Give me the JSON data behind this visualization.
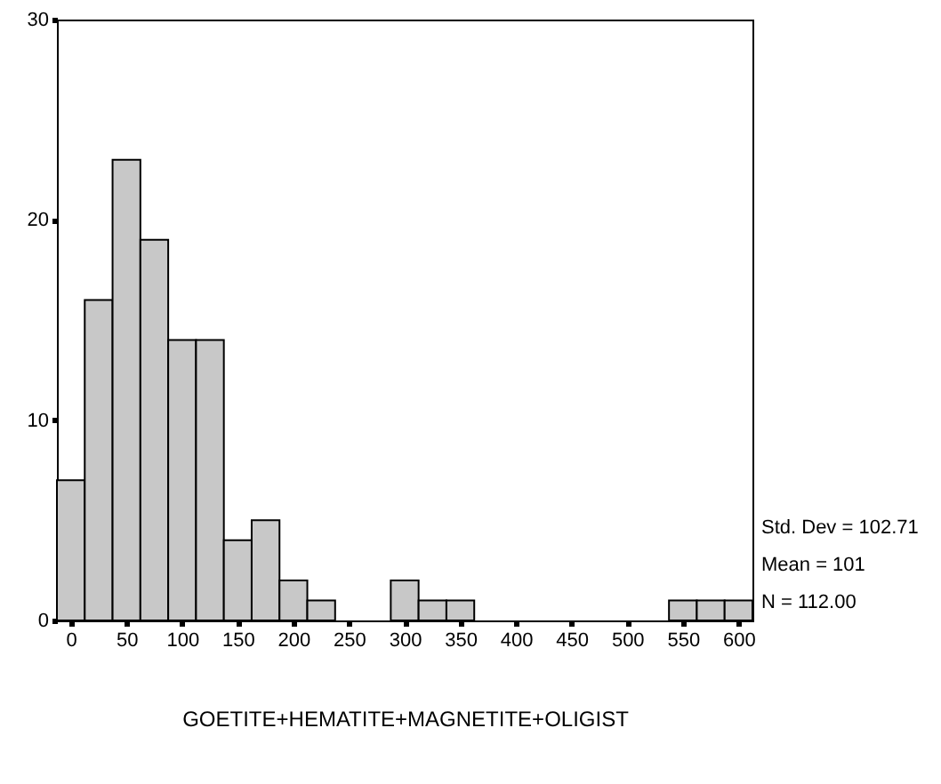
{
  "chart_data": {
    "type": "histogram",
    "xlabel": "GOETITE+HEMATITE+MAGNETITE+OLIGIST",
    "bins": [
      -12.5,
      12.5,
      37.5,
      62.5,
      87.5,
      112.5,
      137.5,
      162.5,
      187.5,
      212.5,
      237.5,
      262.5,
      287.5,
      312.5,
      337.5,
      362.5,
      387.5,
      412.5,
      437.5,
      462.5,
      487.5,
      512.5,
      537.5,
      562.5,
      587.5,
      612.5
    ],
    "values": [
      7,
      16,
      23,
      19,
      14,
      14,
      4,
      5,
      2,
      1,
      0,
      0,
      2,
      1,
      1,
      0,
      0,
      0,
      0,
      0,
      0,
      0,
      1,
      1,
      1
    ],
    "color": "#c8c8c8",
    "xlim": [
      -12.5,
      612.5
    ],
    "xticks": [
      0,
      50,
      100,
      150,
      200,
      250,
      300,
      350,
      400,
      450,
      500,
      550,
      600
    ],
    "ylim": [
      0,
      30
    ],
    "yticks": [
      0,
      10,
      20,
      30
    ],
    "grid": false,
    "annotations": [
      "Std. Dev = 102.71",
      "Mean = 101",
      "N = 112.00"
    ]
  }
}
